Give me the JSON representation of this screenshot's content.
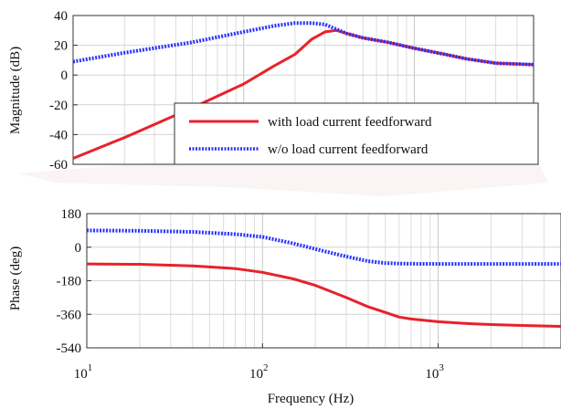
{
  "chart_data": [
    {
      "type": "line",
      "x_scale": "log",
      "xlim": [
        10,
        5000
      ],
      "ylim": [
        -60,
        40
      ],
      "yticks": [
        "40",
        "20",
        "0",
        "-20",
        "-40",
        "-60"
      ],
      "ylabel": "Magnitude (dB)",
      "grid": true,
      "legend_placement": "bottom-right",
      "series": [
        {
          "name": "with load current feedforward",
          "color": "#e8222a",
          "style": "solid",
          "x": [
            10,
            20,
            50,
            100,
            150,
            200,
            250,
            300,
            350,
            400,
            500,
            700,
            1000,
            1500,
            2000,
            3000,
            5000
          ],
          "y": [
            -56,
            -42,
            -22,
            -6,
            6,
            14,
            24,
            29,
            30,
            28,
            25,
            22,
            18,
            14,
            11,
            8,
            7
          ]
        },
        {
          "name": "w/o load current feedforward",
          "color": "#2b33ff",
          "style": "dotted",
          "x": [
            10,
            20,
            50,
            100,
            150,
            200,
            250,
            300,
            400,
            500,
            700,
            1000,
            1500,
            2000,
            3000,
            5000
          ],
          "y": [
            9,
            15,
            22,
            29,
            33,
            35,
            35,
            34,
            28,
            25,
            22,
            18,
            14,
            11,
            8,
            7
          ]
        }
      ]
    },
    {
      "type": "line",
      "x_scale": "log",
      "xlim": [
        10,
        5000
      ],
      "ylim": [
        -540,
        180
      ],
      "yticks": [
        "180",
        "0",
        "-180",
        "-360",
        "-540"
      ],
      "xticks": [
        {
          "base": "10",
          "exp": "1"
        },
        {
          "base": "10",
          "exp": "2"
        },
        {
          "base": "10",
          "exp": "3"
        }
      ],
      "xlabel": "Frequency (Hz)",
      "ylabel": "Phase (deg)",
      "grid": true,
      "series": [
        {
          "name": "with load current feedforward",
          "color": "#e8222a",
          "style": "solid",
          "x": [
            10,
            20,
            40,
            70,
            100,
            150,
            200,
            300,
            400,
            500,
            600,
            700,
            1000,
            1500,
            2000,
            3000,
            5000
          ],
          "y": [
            -90,
            -92,
            -100,
            -115,
            -135,
            -170,
            -205,
            -270,
            -320,
            -350,
            -375,
            -385,
            -400,
            -410,
            -415,
            -420,
            -425
          ]
        },
        {
          "name": "w/o load current feedforward",
          "color": "#2b33ff",
          "style": "dotted",
          "x": [
            10,
            20,
            40,
            70,
            100,
            150,
            200,
            300,
            400,
            500,
            600,
            700,
            1000,
            2000,
            5000
          ],
          "y": [
            90,
            88,
            82,
            70,
            55,
            20,
            -10,
            -50,
            -75,
            -85,
            -88,
            -89,
            -90,
            -90,
            -90
          ]
        }
      ]
    }
  ]
}
